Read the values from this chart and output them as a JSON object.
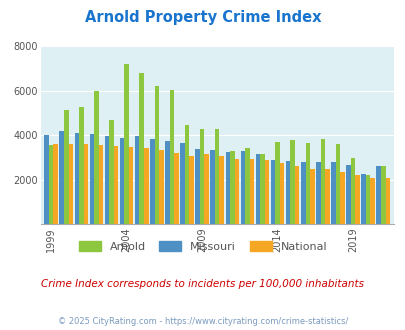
{
  "title": "Arnold Property Crime Index",
  "years": [
    1999,
    2000,
    2001,
    2002,
    2003,
    2004,
    2005,
    2006,
    2007,
    2008,
    2009,
    2010,
    2011,
    2012,
    2013,
    2014,
    2015,
    2016,
    2017,
    2018,
    2019,
    2020,
    2021
  ],
  "arnold": [
    3550,
    5150,
    5280,
    6000,
    4700,
    7200,
    6800,
    6200,
    6050,
    4450,
    4300,
    4300,
    3300,
    3450,
    3150,
    3700,
    3800,
    3650,
    3850,
    3600,
    3000,
    2220,
    2600
  ],
  "missouri": [
    4000,
    4200,
    4100,
    4050,
    3950,
    3900,
    3950,
    3850,
    3750,
    3650,
    3400,
    3320,
    3270,
    3300,
    3150,
    2900,
    2850,
    2800,
    2800,
    2800,
    2650,
    2250,
    2600
  ],
  "national": [
    3600,
    3630,
    3600,
    3560,
    3500,
    3480,
    3430,
    3360,
    3200,
    3050,
    3160,
    3050,
    2950,
    2930,
    2890,
    2750,
    2600,
    2500,
    2470,
    2370,
    2200,
    2100,
    2100
  ],
  "arnold_color": "#8dc63f",
  "missouri_color": "#4e8fc4",
  "national_color": "#f5a623",
  "bg_color": "#dff0f5",
  "ylim": [
    0,
    8000
  ],
  "yticks": [
    0,
    2000,
    4000,
    6000,
    8000
  ],
  "xlabel_years": [
    1999,
    2004,
    2009,
    2014,
    2019
  ],
  "subtitle": "Crime Index corresponds to incidents per 100,000 inhabitants",
  "footer": "© 2025 CityRating.com - https://www.cityrating.com/crime-statistics/",
  "title_color": "#1874cd",
  "subtitle_color": "#cc0000",
  "footer_color": "#7a9abf",
  "legend_label_color": "#555555"
}
